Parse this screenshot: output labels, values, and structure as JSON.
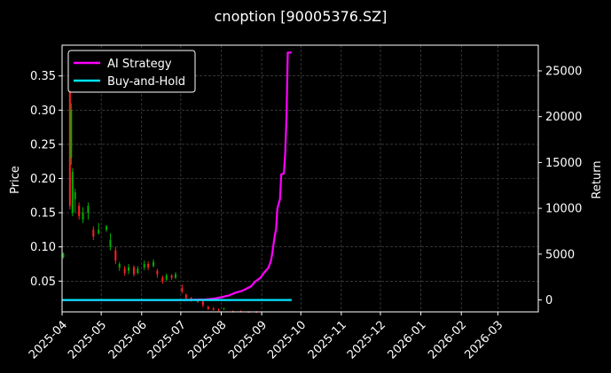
{
  "chart_data": {
    "type": "line",
    "title": "cnoption [90005376.SZ]",
    "ylabel_left": "Price",
    "ylabel_right": "Return",
    "xlabel": "",
    "x_ticks": [
      "2025-04",
      "2025-05",
      "2025-06",
      "2025-07",
      "2025-08",
      "2025-09",
      "2025-10",
      "2025-11",
      "2025-12",
      "2026-01",
      "2026-02",
      "2026-03"
    ],
    "xlim": [
      "2025-04-01",
      "2026-04-01"
    ],
    "ylim_left": [
      0.005,
      0.395
    ],
    "yticks_left": [
      "0.05",
      "0.10",
      "0.15",
      "0.20",
      "0.25",
      "0.30",
      "0.35"
    ],
    "ylim_right": [
      -1300,
      27800
    ],
    "yticks_right": [
      "0",
      "5000",
      "10000",
      "15000",
      "20000",
      "25000"
    ],
    "grid": true,
    "legend_position": "top-left",
    "legend": [
      "AI Strategy",
      "Buy-and-Hold"
    ],
    "colors": {
      "ai_strategy": "#ff00ff",
      "buy_and_hold": "#00e5ff",
      "candle_up": "#00b000",
      "candle_down": "#ff2020",
      "grid": "#555555",
      "background": "#000000"
    },
    "series": [
      {
        "name": "AI Strategy",
        "axis": "right",
        "points": [
          [
            "2025-04-01",
            0
          ],
          [
            "2025-05-01",
            0
          ],
          [
            "2025-06-01",
            0
          ],
          [
            "2025-07-01",
            0
          ],
          [
            "2025-07-20",
            50
          ],
          [
            "2025-07-27",
            150
          ],
          [
            "2025-08-01",
            300
          ],
          [
            "2025-08-07",
            500
          ],
          [
            "2025-08-12",
            800
          ],
          [
            "2025-08-17",
            1000
          ],
          [
            "2025-08-20",
            1200
          ],
          [
            "2025-08-24",
            1500
          ],
          [
            "2025-08-27",
            2000
          ],
          [
            "2025-08-31",
            2400
          ],
          [
            "2025-09-03",
            3000
          ],
          [
            "2025-09-06",
            3500
          ],
          [
            "2025-09-08",
            4200
          ],
          [
            "2025-09-09",
            5000
          ],
          [
            "2025-09-11",
            7000
          ],
          [
            "2025-09-12",
            7700
          ],
          [
            "2025-09-13",
            10000
          ],
          [
            "2025-09-15",
            11000
          ],
          [
            "2025-09-16",
            13700
          ],
          [
            "2025-09-18",
            13800
          ],
          [
            "2025-09-19",
            16000
          ],
          [
            "2025-09-20",
            20000
          ],
          [
            "2025-09-21",
            27000
          ],
          [
            "2025-09-24",
            27000
          ]
        ]
      },
      {
        "name": "Buy-and-Hold",
        "axis": "right",
        "points": [
          [
            "2025-04-01",
            0
          ],
          [
            "2025-09-24",
            0
          ]
        ]
      }
    ],
    "candles": [
      {
        "date": "2025-04-02",
        "open": 0.085,
        "close": 0.09,
        "high": 0.092,
        "low": 0.083
      },
      {
        "date": "2025-04-07",
        "open": 0.33,
        "close": 0.16,
        "high": 0.355,
        "low": 0.155
      },
      {
        "date": "2025-04-08",
        "open": 0.23,
        "close": 0.3,
        "high": 0.31,
        "low": 0.22
      },
      {
        "date": "2025-04-09",
        "open": 0.15,
        "close": 0.21,
        "high": 0.215,
        "low": 0.145
      },
      {
        "date": "2025-04-11",
        "open": 0.17,
        "close": 0.18,
        "high": 0.185,
        "low": 0.15
      },
      {
        "date": "2025-04-14",
        "open": 0.16,
        "close": 0.145,
        "high": 0.165,
        "low": 0.14
      },
      {
        "date": "2025-04-17",
        "open": 0.14,
        "close": 0.15,
        "high": 0.158,
        "low": 0.135
      },
      {
        "date": "2025-04-21",
        "open": 0.15,
        "close": 0.16,
        "high": 0.165,
        "low": 0.14
      },
      {
        "date": "2025-04-25",
        "open": 0.125,
        "close": 0.115,
        "high": 0.13,
        "low": 0.11
      },
      {
        "date": "2025-04-29",
        "open": 0.12,
        "close": 0.125,
        "high": 0.135,
        "low": 0.118
      },
      {
        "date": "2025-05-05",
        "open": 0.125,
        "close": 0.13,
        "high": 0.132,
        "low": 0.122
      },
      {
        "date": "2025-05-08",
        "open": 0.1,
        "close": 0.11,
        "high": 0.12,
        "low": 0.095
      },
      {
        "date": "2025-05-12",
        "open": 0.095,
        "close": 0.08,
        "high": 0.1,
        "low": 0.075
      },
      {
        "date": "2025-05-15",
        "open": 0.07,
        "close": 0.075,
        "high": 0.078,
        "low": 0.065
      },
      {
        "date": "2025-05-19",
        "open": 0.068,
        "close": 0.062,
        "high": 0.072,
        "low": 0.058
      },
      {
        "date": "2025-05-22",
        "open": 0.065,
        "close": 0.07,
        "high": 0.075,
        "low": 0.06
      },
      {
        "date": "2025-05-26",
        "open": 0.07,
        "close": 0.06,
        "high": 0.073,
        "low": 0.057
      },
      {
        "date": "2025-05-29",
        "open": 0.062,
        "close": 0.068,
        "high": 0.072,
        "low": 0.06
      },
      {
        "date": "2025-06-03",
        "open": 0.07,
        "close": 0.075,
        "high": 0.08,
        "low": 0.066
      },
      {
        "date": "2025-06-06",
        "open": 0.075,
        "close": 0.07,
        "high": 0.079,
        "low": 0.066
      },
      {
        "date": "2025-06-10",
        "open": 0.072,
        "close": 0.078,
        "high": 0.082,
        "low": 0.07
      },
      {
        "date": "2025-06-13",
        "open": 0.065,
        "close": 0.06,
        "high": 0.068,
        "low": 0.055
      },
      {
        "date": "2025-06-17",
        "open": 0.055,
        "close": 0.05,
        "high": 0.058,
        "low": 0.046
      },
      {
        "date": "2025-06-20",
        "open": 0.052,
        "close": 0.058,
        "high": 0.061,
        "low": 0.05
      },
      {
        "date": "2025-06-24",
        "open": 0.058,
        "close": 0.055,
        "high": 0.06,
        "low": 0.052
      },
      {
        "date": "2025-06-27",
        "open": 0.055,
        "close": 0.06,
        "high": 0.063,
        "low": 0.053
      },
      {
        "date": "2025-07-02",
        "open": 0.04,
        "close": 0.035,
        "high": 0.045,
        "low": 0.032
      },
      {
        "date": "2025-07-05",
        "open": 0.03,
        "close": 0.025,
        "high": 0.032,
        "low": 0.022
      },
      {
        "date": "2025-07-09",
        "open": 0.025,
        "close": 0.022,
        "high": 0.027,
        "low": 0.02
      },
      {
        "date": "2025-07-14",
        "open": 0.022,
        "close": 0.02,
        "high": 0.023,
        "low": 0.018
      },
      {
        "date": "2025-07-18",
        "open": 0.02,
        "close": 0.015,
        "high": 0.022,
        "low": 0.012
      },
      {
        "date": "2025-07-22",
        "open": 0.012,
        "close": 0.009,
        "high": 0.014,
        "low": 0.008
      },
      {
        "date": "2025-07-26",
        "open": 0.01,
        "close": 0.008,
        "high": 0.012,
        "low": 0.007
      },
      {
        "date": "2025-07-30",
        "open": 0.008,
        "close": 0.007,
        "high": 0.01,
        "low": 0.006
      },
      {
        "date": "2025-08-03",
        "open": 0.009,
        "close": 0.01,
        "high": 0.011,
        "low": 0.008
      },
      {
        "date": "2025-08-10",
        "open": 0.006,
        "close": 0.005,
        "high": 0.007,
        "low": 0.004
      },
      {
        "date": "2025-08-16",
        "open": 0.006,
        "close": 0.005,
        "high": 0.007,
        "low": 0.004
      },
      {
        "date": "2025-08-22",
        "open": 0.005,
        "close": 0.004,
        "high": 0.006,
        "low": 0.004
      },
      {
        "date": "2025-08-28",
        "open": 0.005,
        "close": 0.004,
        "high": 0.006,
        "low": 0.004
      }
    ]
  }
}
